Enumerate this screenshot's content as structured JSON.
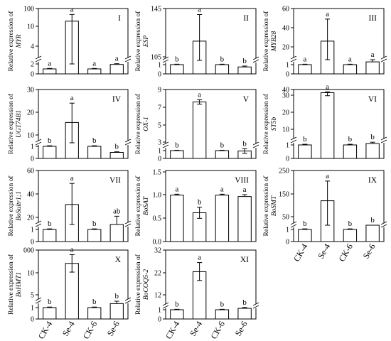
{
  "y_axis_prefix": "Relative expression of",
  "categories": [
    "CK-4",
    "Se-4",
    "CK-6",
    "Se-6"
  ],
  "colors": {
    "bar_fill": "#ffffff",
    "stroke": "#000000"
  },
  "chart_data": [
    {
      "panel": "I",
      "type": "bar",
      "gene": "MYR",
      "y_ticks_lower": [
        "0",
        "2"
      ],
      "y_ticks_upper": [
        "4",
        "10",
        "100"
      ],
      "categories": [
        "CK-4",
        "Se-4",
        "CK-6",
        "Se-6"
      ],
      "values": [
        1.0,
        36,
        1.0,
        1.9
      ],
      "errors": [
        0.1,
        34,
        0.1,
        0.15
      ],
      "letters": [
        "a",
        "a",
        "a",
        "a"
      ]
    },
    {
      "panel": "II",
      "type": "bar",
      "gene": "ESP",
      "y_ticks_lower": [
        "0",
        "1"
      ],
      "y_ticks_upper": [
        "105",
        "145"
      ],
      "categories": [
        "CK-4",
        "Se-4",
        "CK-6",
        "Se-6"
      ],
      "values": [
        1.0,
        118,
        1.0,
        0.75
      ],
      "errors": [
        0.05,
        22,
        0.05,
        0.1
      ],
      "letters": [
        "b",
        "a",
        "b",
        "b"
      ]
    },
    {
      "panel": "III",
      "type": "bar",
      "gene": "MYB28",
      "y_ticks_lower": [
        "0",
        "1"
      ],
      "y_ticks_upper": [
        "20",
        "40",
        "60"
      ],
      "categories": [
        "CK-4",
        "Se-4",
        "CK-6",
        "Se-6"
      ],
      "values": [
        1.0,
        26,
        1.0,
        1.3
      ],
      "errors": [
        0.05,
        23,
        0.05,
        0.1
      ],
      "letters": [
        "a",
        "a",
        "a",
        "a"
      ]
    },
    {
      "panel": "IV",
      "type": "bar",
      "gene": "UGT74B1",
      "y_ticks_lower": [
        "0",
        "1"
      ],
      "y_ticks_upper": [
        "10",
        "20",
        "30"
      ],
      "categories": [
        "CK-4",
        "Se-4",
        "CK-6",
        "Se-6"
      ],
      "values": [
        1.0,
        15.5,
        1.0,
        0.5
      ],
      "errors": [
        0.05,
        8.5,
        0.05,
        0.05
      ],
      "letters": [
        "b",
        "a",
        "b",
        "b"
      ]
    },
    {
      "panel": "V",
      "type": "bar",
      "gene": "OX-1",
      "y_ticks_lower": [
        "0",
        "1"
      ],
      "y_ticks_upper": [
        "3",
        "5",
        "7",
        "9"
      ],
      "categories": [
        "CK-4",
        "Se-4",
        "CK-6",
        "Se-6"
      ],
      "values": [
        1.0,
        7.6,
        1.0,
        0.95
      ],
      "errors": [
        0.05,
        0.25,
        0.05,
        0.3
      ],
      "letters": [
        "b",
        "a",
        "b",
        "b"
      ]
    },
    {
      "panel": "VI",
      "type": "bar",
      "gene": "ST5b",
      "y_ticks_lower": [
        "0",
        "1"
      ],
      "y_ticks_upper": [
        "10",
        "20",
        "30",
        "40"
      ],
      "categories": [
        "CK-4",
        "Se-4",
        "CK-6",
        "Se-6"
      ],
      "values": [
        1.0,
        31,
        1.0,
        1.1
      ],
      "errors": [
        0.05,
        2.5,
        0.05,
        0.1
      ],
      "letters": [
        "b",
        "a",
        "b",
        "b"
      ]
    },
    {
      "panel": "VII",
      "type": "bar",
      "gene": "BoSultr1;1",
      "y_ticks_lower": [
        "0",
        "1"
      ],
      "y_ticks_upper": [
        "20",
        "40",
        "60"
      ],
      "categories": [
        "CK-4",
        "Se-4",
        "CK-6",
        "Se-6"
      ],
      "values": [
        1.0,
        31,
        1.0,
        18
      ],
      "errors": [
        0.05,
        18,
        0.05,
        3
      ],
      "letters": [
        "b",
        "a",
        "b",
        "ab"
      ]
    },
    {
      "panel": "VIII",
      "type": "bar",
      "gene": "BoSAT",
      "y_ticks": [
        "0.0",
        "0.5",
        "1.0",
        "1.5"
      ],
      "categories": [
        "CK-4",
        "Se-4",
        "CK-6",
        "Se-6"
      ],
      "values": [
        1.0,
        0.62,
        1.0,
        0.97
      ],
      "errors": [
        0.02,
        0.12,
        0.02,
        0.04
      ],
      "letters": [
        "a",
        "b",
        "a",
        "a"
      ]
    },
    {
      "panel": "IX",
      "type": "bar",
      "gene": "BoSMT",
      "y_ticks_lower": [
        "0",
        "1"
      ],
      "y_ticks_upper": [
        "50",
        "150",
        "250"
      ],
      "categories": [
        "CK-4",
        "Se-4",
        "CK-6",
        "Se-6"
      ],
      "values": [
        1.0,
        120,
        1.0,
        1.4
      ],
      "errors": [
        0.05,
        85,
        0.05,
        0.1
      ],
      "letters": [
        "b",
        "a",
        "b",
        "b"
      ]
    },
    {
      "panel": "X",
      "type": "bar",
      "gene": "BoHMT1",
      "y_ticks_lower": [
        "0",
        "1"
      ],
      "y_ticks_upper": [
        "5",
        "10",
        "000"
      ],
      "categories": [
        "CK-4",
        "Se-4",
        "CK-6",
        "Se-6"
      ],
      "values": [
        1.0,
        420,
        1.0,
        1.35
      ],
      "errors": [
        0.05,
        380,
        0.05,
        0.15
      ],
      "letters": [
        "b",
        "a",
        "b",
        "b"
      ]
    },
    {
      "panel": "XI",
      "type": "bar",
      "gene": "BoCOQ5-2",
      "y_ticks_lower": [
        "0",
        "1"
      ],
      "y_ticks_upper": [
        "12",
        "22",
        "32"
      ],
      "categories": [
        "CK-4",
        "Se-4",
        "CK-6",
        "Se-6"
      ],
      "values": [
        1.0,
        22.5,
        1.0,
        1.15
      ],
      "errors": [
        0.05,
        4,
        0.05,
        0.1
      ],
      "letters": [
        "b",
        "a",
        "b",
        "b"
      ]
    }
  ]
}
